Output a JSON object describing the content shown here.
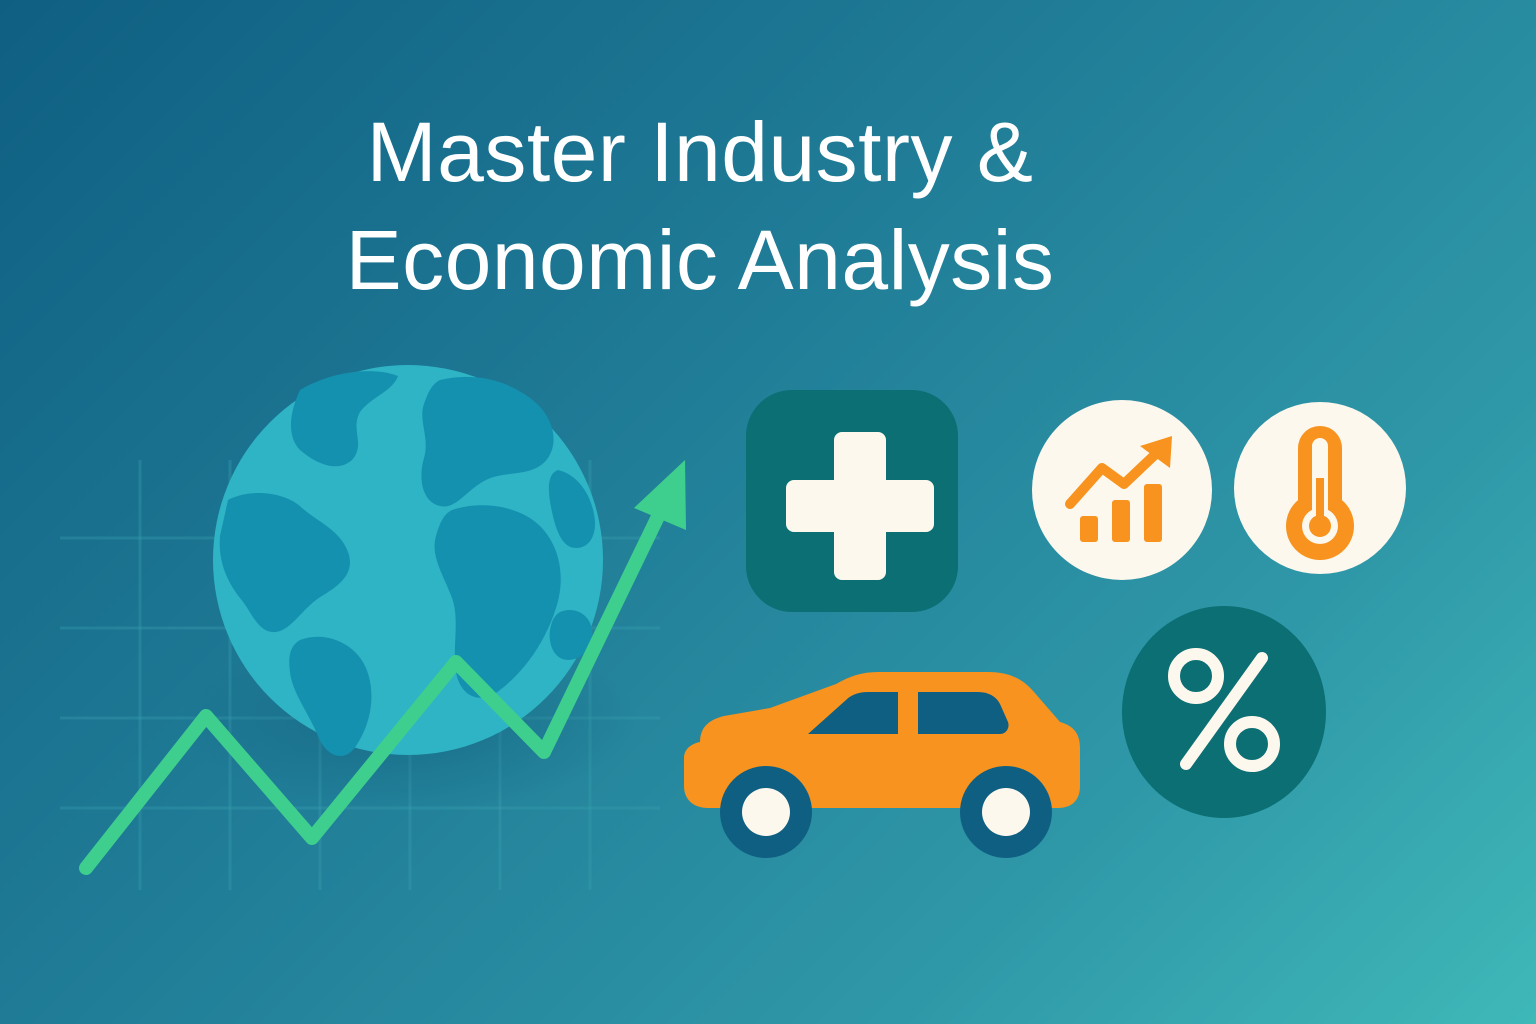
{
  "title": {
    "line1": "Master Industry &",
    "line2": "Economic Analysis"
  },
  "icons": {
    "globe": "globe-icon",
    "trend_line": "upward-trend-arrow-icon",
    "health": "medical-cross-icon",
    "growth": "bar-chart-growth-icon",
    "temperature": "thermometer-icon",
    "automotive": "car-icon",
    "rates": "percent-icon"
  },
  "percent_symbol": "%",
  "colors": {
    "bg_start": "#0f5f82",
    "bg_end": "#3fb8b8",
    "accent_green": "#3ecf8e",
    "accent_orange": "#f7931e",
    "dark_teal": "#0b6f73",
    "cream": "#fdf8ee",
    "navy": "#0f5f82"
  }
}
